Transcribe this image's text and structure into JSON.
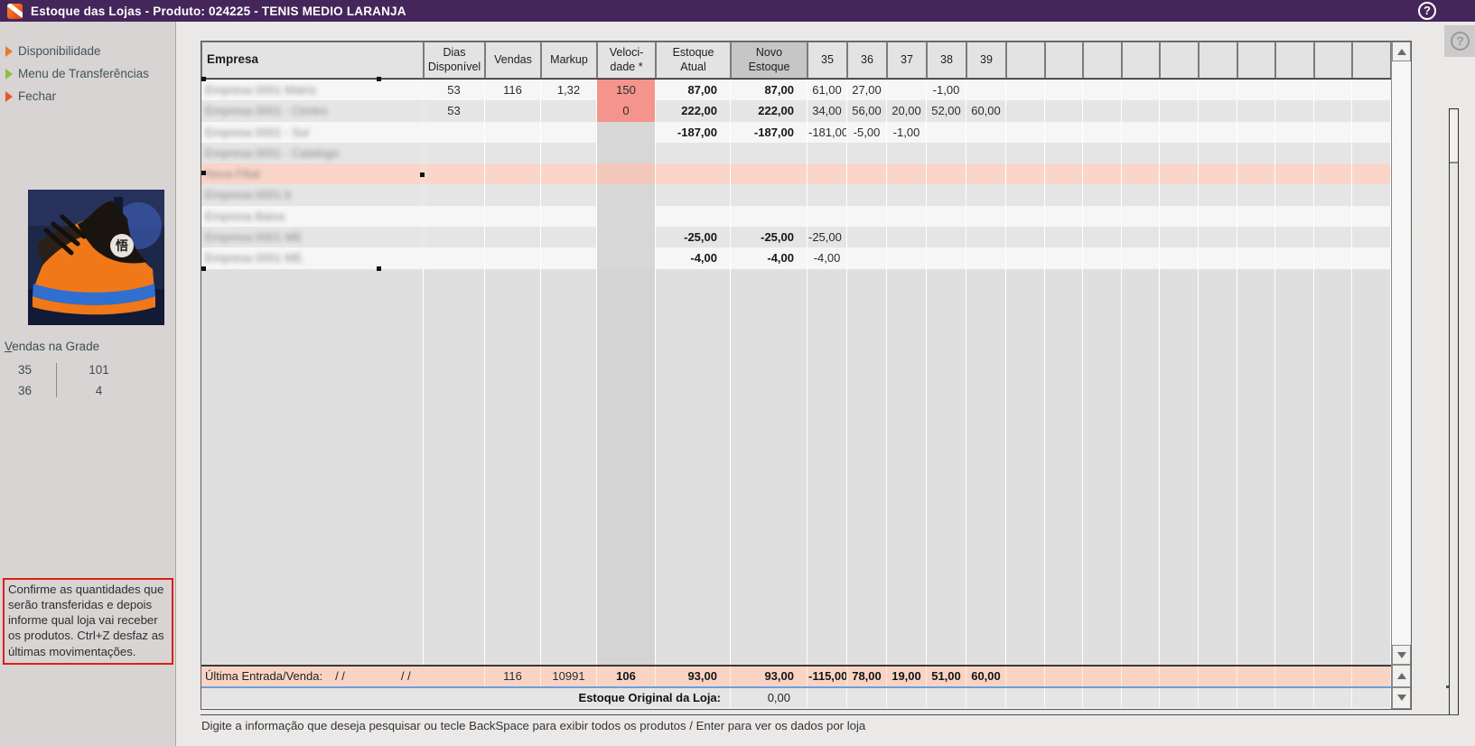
{
  "window": {
    "title": "Estoque das Lojas - Produto: 024225 - TENIS MEDIO LARANJA",
    "help_label": "?"
  },
  "sidebar": {
    "links": [
      {
        "id": "disponibilidade",
        "label": "Disponibilidade",
        "arrow_color": "#E87A2C"
      },
      {
        "id": "menu-de-transferencias",
        "label": "Menu de Transferências",
        "arrow_color": "#8CBF3F"
      },
      {
        "id": "fechar",
        "label": "Fechar",
        "arrow_color": "#E8562A"
      }
    ],
    "product_image": "orange-black-sneaker-photo",
    "sales_grid": {
      "title": "Vendas na Grade",
      "rows": [
        {
          "size": "35",
          "qty": "101"
        },
        {
          "size": "36",
          "qty": "4"
        }
      ]
    },
    "info_box": {
      "text": "Confirme as quantidades que serão transferidas e depois informe qual loja vai receber os produtos. Ctrl+Z desfaz as últimas movimentações."
    }
  },
  "table": {
    "headers": {
      "empresa": "Empresa",
      "dias": "Dias\nDisponível",
      "vendas": "Vendas",
      "markup": "Markup",
      "velocidade": "Veloci-\ndade *",
      "estoque_atual": "Estoque\nAtual",
      "novo_estoque": "Novo\nEstoque"
    },
    "size_columns": [
      "35",
      "36",
      "37",
      "38",
      "39"
    ],
    "empty_trailing_columns": 10,
    "rows": [
      {
        "empresa": "Empresa 0001 Matriz",
        "redacted": true,
        "dias": "53",
        "vendas": "116",
        "markup": "1,32",
        "veloc": "150",
        "veloc_alert": true,
        "est_atual": "87,00",
        "novo_estoque": "87,00",
        "sizes": [
          "61,00",
          "27,00",
          "",
          "-1,00",
          ""
        ]
      },
      {
        "empresa": "Empresa 0001 - Centro",
        "redacted": true,
        "dias": "53",
        "vendas": "",
        "markup": "",
        "veloc": "0",
        "veloc_alert": true,
        "est_atual": "222,00",
        "novo_estoque": "222,00",
        "sizes": [
          "34,00",
          "56,00",
          "20,00",
          "52,00",
          "60,00"
        ]
      },
      {
        "empresa": "Empresa 0001 - Sul",
        "redacted": true,
        "dias": "",
        "vendas": "",
        "markup": "",
        "veloc": "",
        "est_atual": "-187,00",
        "novo_estoque": "-187,00",
        "sizes": [
          "-181,00",
          "-5,00",
          "-1,00",
          "",
          ""
        ]
      },
      {
        "empresa": "Empresa 0001 - Catalogo",
        "redacted": true,
        "dias": "",
        "vendas": "",
        "markup": "",
        "veloc": "",
        "est_atual": "",
        "novo_estoque": "",
        "sizes": [
          "",
          "",
          "",
          "",
          ""
        ]
      },
      {
        "empresa": "Nova Filial",
        "redacted": true,
        "pink": true,
        "dias": "",
        "vendas": "",
        "markup": "",
        "veloc": "",
        "est_atual": "",
        "novo_estoque": "",
        "sizes": [
          "",
          "",
          "",
          "",
          ""
        ]
      },
      {
        "empresa": "Empresa 0001 b",
        "redacted": true,
        "dias": "",
        "vendas": "",
        "markup": "",
        "veloc": "",
        "est_atual": "",
        "novo_estoque": "",
        "sizes": [
          "",
          "",
          "",
          "",
          ""
        ]
      },
      {
        "empresa": "Empresa Baixa",
        "redacted": true,
        "dias": "",
        "vendas": "",
        "markup": "",
        "veloc": "",
        "est_atual": "",
        "novo_estoque": "",
        "sizes": [
          "",
          "",
          "",
          "",
          ""
        ]
      },
      {
        "empresa": "Empresa 0001 ME",
        "redacted": true,
        "dias": "",
        "vendas": "",
        "markup": "",
        "veloc": "",
        "est_atual": "-25,00",
        "novo_estoque": "-25,00",
        "sizes": [
          "-25,00",
          "",
          "",
          "",
          ""
        ]
      },
      {
        "empresa": "Empresa 0001 ME.",
        "redacted": true,
        "dias": "",
        "vendas": "",
        "markup": "",
        "veloc": "",
        "est_atual": "-4,00",
        "novo_estoque": "-4,00",
        "sizes": [
          "-4,00",
          "",
          "",
          "",
          ""
        ]
      }
    ],
    "summary_row": {
      "label": "Última Entrada/Venda:",
      "date1": "/ /",
      "date2": "/ /",
      "vendas": "116",
      "markup": "10991",
      "veloc": "106",
      "est_atual": "93,00",
      "novo_estoque": "93,00",
      "sizes": [
        "-115,00",
        "78,00",
        "19,00",
        "51,00",
        "60,00"
      ]
    },
    "original_row": {
      "label": "Estoque Original da Loja:",
      "value": "0,00"
    }
  },
  "status_bar": {
    "text": "Digite a informação que deseja pesquisar ou tecle BackSpace para exibir todos os produtos / Enter para ver os dados por loja"
  },
  "colors": {
    "titlebar": "#45265A",
    "velocity_alert": "#F4948C",
    "pink_row": "#F9D6C9",
    "summary_row": "#F9D4C5",
    "info_border": "#DF1D14",
    "summary_bottom_border": "#6AA1DC"
  }
}
